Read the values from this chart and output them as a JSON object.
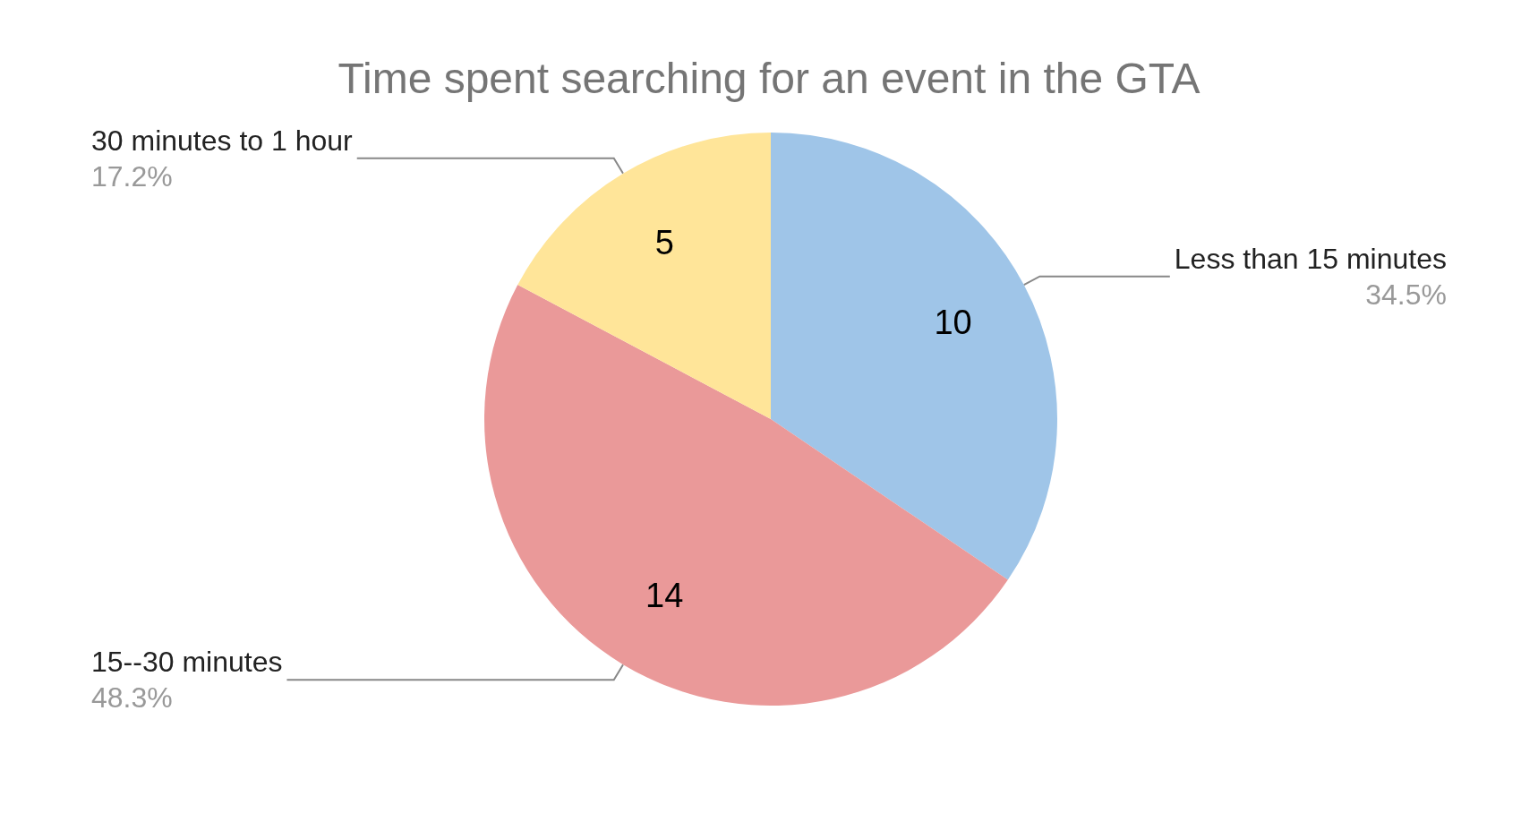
{
  "chart_data": {
    "type": "pie",
    "title": "Time spent searching for an event in the GTA",
    "categories": [
      "Less than 15 minutes",
      "15--30 minutes",
      "30 minutes to 1 hour"
    ],
    "values": [
      10,
      14,
      5
    ],
    "colors": [
      "#9fc5e8",
      "#ea9999",
      "#ffe599"
    ],
    "annotations": [
      "34.5%",
      "48.3%",
      "17.2%"
    ],
    "data_labels": true,
    "legend": false
  }
}
